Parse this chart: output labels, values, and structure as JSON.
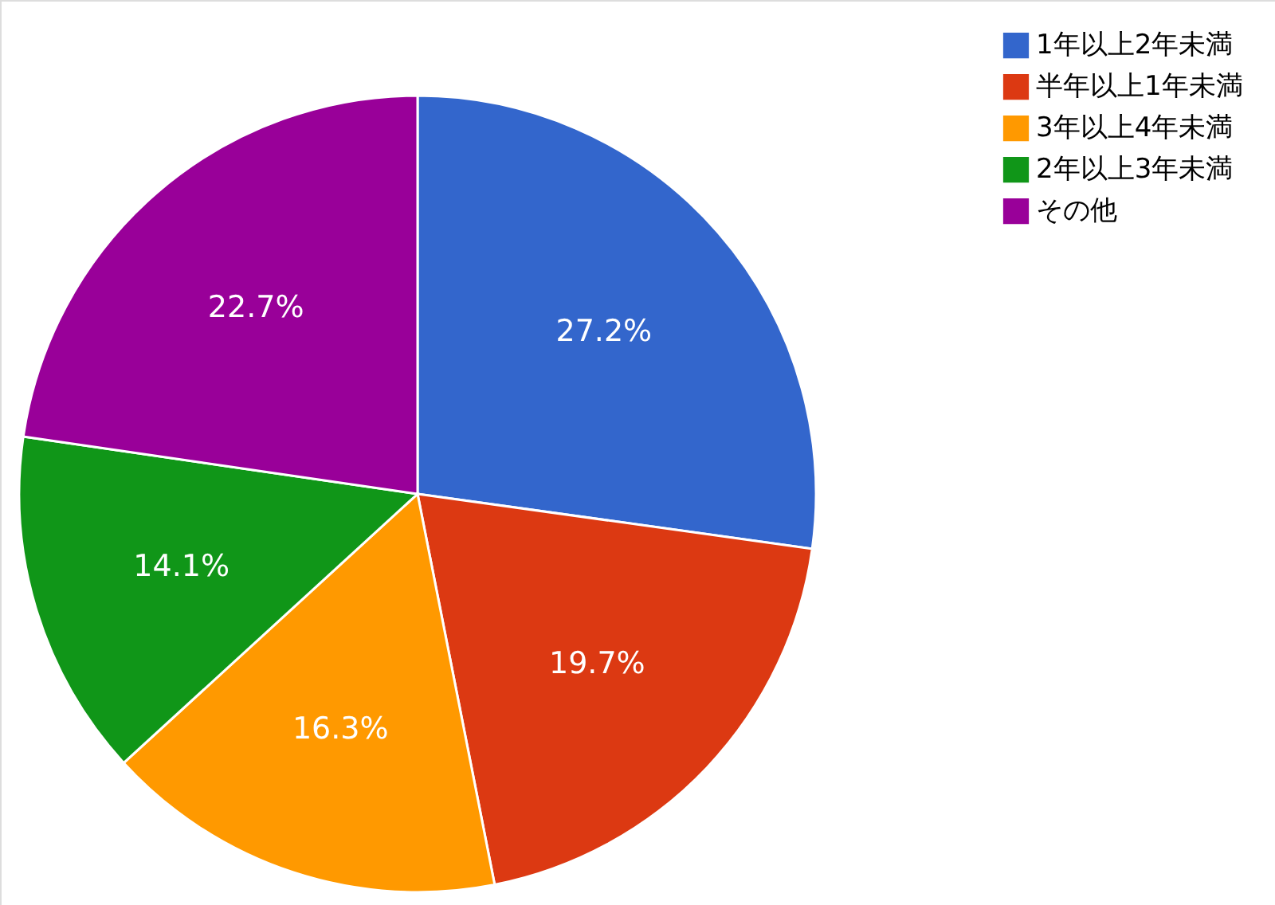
{
  "chart_data": {
    "type": "pie",
    "categories": [
      "1年以上2年未満",
      "半年以上1年未満",
      "3年以上4年未満",
      "2年以上3年未満",
      "その他"
    ],
    "values": [
      27.2,
      19.7,
      16.3,
      14.1,
      22.7
    ],
    "colors": [
      "#3366cc",
      "#dc3912",
      "#ff9900",
      "#109618",
      "#990099"
    ],
    "value_labels": [
      "27.2%",
      "19.7%",
      "16.3%",
      "14.1%",
      "22.7%"
    ],
    "legend": "top right"
  }
}
